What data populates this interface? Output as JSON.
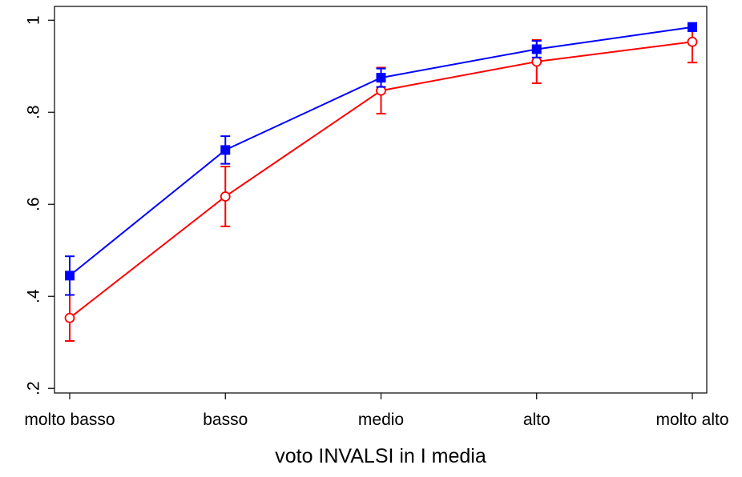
{
  "chart_data": {
    "type": "line",
    "title": "",
    "xlabel": "voto INVALSI in I media",
    "ylabel": "",
    "categories": [
      "molto basso",
      "basso",
      "medio",
      "alto",
      "molto alto"
    ],
    "y_ticks": [
      0.2,
      0.4,
      0.6,
      0.8,
      1.0
    ],
    "y_tick_labels": [
      ".2",
      ".4",
      ".6",
      ".8",
      "1"
    ],
    "ylim": [
      0.19,
      1.03
    ],
    "grid": false,
    "legend": "none",
    "series": [
      {
        "color": "#0000ff",
        "marker": "filled-square",
        "values": [
          0.445,
          0.718,
          0.875,
          0.937,
          0.985
        ],
        "ci_low": [
          0.403,
          0.688,
          0.855,
          0.919,
          0.976
        ],
        "ci_high": [
          0.487,
          0.748,
          0.895,
          0.955,
          0.994
        ]
      },
      {
        "color": "#ff0000",
        "marker": "hollow-circle",
        "values": [
          0.353,
          0.617,
          0.847,
          0.91,
          0.953
        ],
        "ci_low": [
          0.303,
          0.552,
          0.797,
          0.863,
          0.908
        ],
        "ci_high": [
          0.403,
          0.682,
          0.897,
          0.957,
          0.993
        ]
      }
    ]
  }
}
